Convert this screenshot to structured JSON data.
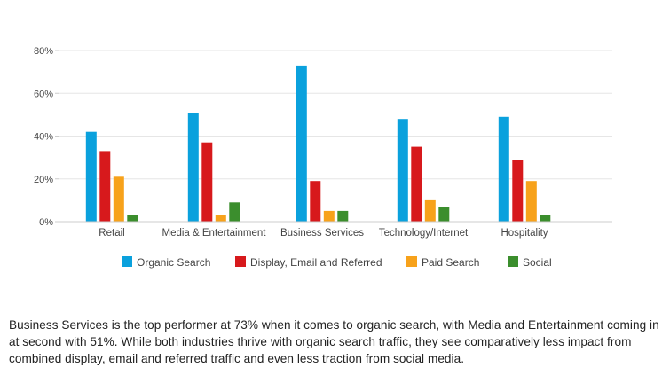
{
  "chart_data": {
    "type": "bar",
    "categories": [
      "Retail",
      "Media & Entertainment",
      "Business Services",
      "Technology/Internet",
      "Hospitality"
    ],
    "series": [
      {
        "name": "Organic Search",
        "color": "#0aa1dd",
        "values": [
          42,
          51,
          73,
          48,
          49
        ]
      },
      {
        "name": "Display, Email and Referred",
        "color": "#d7191c",
        "values": [
          33,
          37,
          19,
          35,
          29
        ]
      },
      {
        "name": "Paid Search",
        "color": "#f7a21b",
        "values": [
          21,
          3,
          5,
          10,
          19
        ]
      },
      {
        "name": "Social",
        "color": "#3b8e2d",
        "values": [
          3,
          9,
          5,
          7,
          3
        ]
      }
    ],
    "ylim": [
      0,
      80
    ],
    "yticks": [
      0,
      20,
      40,
      60,
      80
    ],
    "ytick_labels": [
      "0%",
      "20%",
      "40%",
      "60%",
      "80%"
    ],
    "grid": true,
    "legend_position": "bottom"
  },
  "caption": "Business Services is the top performer at 73% when it comes to organic search, with Media and Entertainment coming in at second with 51%. While both industries thrive with organic search traffic, they see comparatively less impact from combined display, email and referred traffic and even less traction from social media."
}
